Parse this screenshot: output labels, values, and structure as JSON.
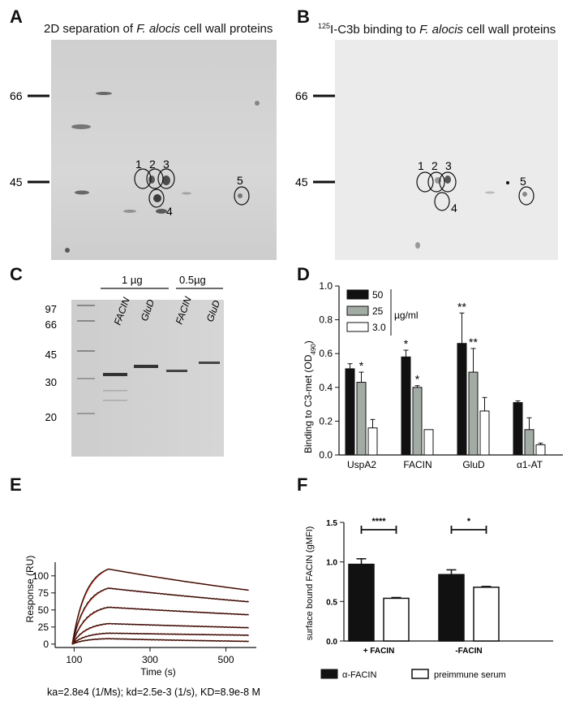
{
  "panels": {
    "A": {
      "letter": "A",
      "title_prefix": "2D separation of ",
      "title_italic": "F. alocis",
      "title_suffix": " cell wall proteins",
      "markers": [
        "66",
        "45"
      ],
      "spots": [
        "1",
        "2",
        "3",
        "4",
        "5"
      ]
    },
    "B": {
      "letter": "B",
      "title_sup": "125",
      "title_prefix": "I-C3b binding to ",
      "title_italic": "F. alocis",
      "title_suffix": " cell wall proteins",
      "markers": [
        "66",
        "45"
      ],
      "spots": [
        "1",
        "2",
        "3",
        "4",
        "5"
      ]
    },
    "C": {
      "letter": "C",
      "amount_labels": [
        "1 µg",
        "0.5µg"
      ],
      "lane_labels": [
        "FACIN",
        "GluD",
        "FACIN",
        "GluD"
      ],
      "markers": [
        "97",
        "66",
        "45",
        "30",
        "20"
      ]
    },
    "D": {
      "letter": "D"
    },
    "E": {
      "letter": "E",
      "caption": "ka=2.8e4 (1/Ms); kd=2.5e-3 (1/s), KD=8.9e-8 M"
    },
    "F": {
      "letter": "F"
    }
  },
  "colors": {
    "black": "#111111",
    "gray_bar": "#a3aca4",
    "white": "#ffffff",
    "fit_red": "#e0331a",
    "gel": "#d4d4d4"
  },
  "chart_data": [
    {
      "id": "D",
      "type": "bar",
      "title": "",
      "ylabel": "Binding to C3-met (OD490)",
      "ylabel_main": "Binding to C3-met (OD",
      "ylabel_sub": "490",
      "ylabel_end": ")",
      "xlabel": "",
      "ylim": [
        0,
        1.0
      ],
      "yticks": [
        "0.0",
        "0.2",
        "0.4",
        "0.6",
        "0.8",
        "1.0"
      ],
      "categories": [
        "UspA2",
        "FACIN",
        "GluD",
        "α1-AT"
      ],
      "legend_unit": "µg/ml",
      "legend_position": "top-left",
      "series": [
        {
          "name": "50",
          "color": "#111111",
          "values": [
            0.51,
            0.58,
            0.66,
            0.31
          ],
          "errors": [
            0.03,
            0.04,
            0.18,
            0.01
          ],
          "sig": [
            "",
            "*",
            "**",
            ""
          ]
        },
        {
          "name": "25",
          "color": "#a3aca4",
          "values": [
            0.43,
            0.4,
            0.49,
            0.15
          ],
          "errors": [
            0.06,
            0.01,
            0.14,
            0.07
          ],
          "sig": [
            "*",
            "*",
            "**",
            ""
          ]
        },
        {
          "name": "3.0",
          "color": "#ffffff",
          "values": [
            0.16,
            0.15,
            0.26,
            0.06
          ],
          "errors": [
            0.05,
            0.0,
            0.08,
            0.01
          ],
          "sig": [
            "",
            "",
            "",
            ""
          ]
        }
      ]
    },
    {
      "id": "E",
      "type": "line",
      "title": "",
      "xlabel": "Time (s)",
      "ylabel": "Response (RU)",
      "xlim": [
        50,
        580
      ],
      "ylim": [
        -5,
        120
      ],
      "xticks": [
        "100",
        "300",
        "500"
      ],
      "yticks": [
        "0",
        "25",
        "50",
        "75",
        "100"
      ],
      "injection_start": 95,
      "injection_end": 190,
      "end_time": 560,
      "series": [
        {
          "peak": 110,
          "end": 79
        },
        {
          "peak": 82,
          "end": 62
        },
        {
          "peak": 54,
          "end": 43
        },
        {
          "peak": 30,
          "end": 24
        },
        {
          "peak": 16,
          "end": 13
        },
        {
          "peak": 8,
          "end": 4
        }
      ]
    },
    {
      "id": "F",
      "type": "bar",
      "title": "",
      "xlabel": "",
      "ylabel": "surface bound FACIN (gMFI)",
      "ylim": [
        0,
        1.5
      ],
      "yticks": [
        "0.0",
        "0.5",
        "1.0",
        "1.5"
      ],
      "categories": [
        "+ FACIN",
        "-FACIN"
      ],
      "legend_position": "bottom",
      "significance": [
        "****",
        "*"
      ],
      "series": [
        {
          "name": "α-FACIN",
          "color": "#111111",
          "values": [
            0.97,
            0.84
          ],
          "errors": [
            0.07,
            0.06
          ]
        },
        {
          "name": "preimmune serum",
          "color": "#ffffff",
          "values": [
            0.54,
            0.68
          ],
          "errors": [
            0.01,
            0.01
          ]
        }
      ]
    }
  ]
}
